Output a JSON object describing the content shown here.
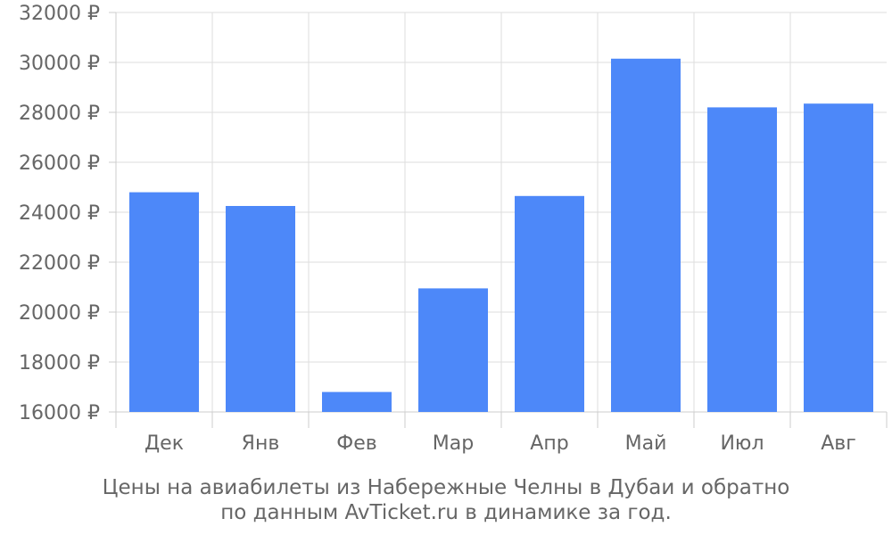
{
  "chart_data": {
    "type": "bar",
    "categories": [
      "Дек",
      "Янв",
      "Фев",
      "Мар",
      "Апр",
      "Май",
      "Июл",
      "Авг"
    ],
    "values": [
      24800,
      24250,
      16800,
      20950,
      24650,
      30150,
      28200,
      28350
    ],
    "ylim": [
      16000,
      32000
    ],
    "yticks": [
      16000,
      18000,
      20000,
      22000,
      24000,
      26000,
      28000,
      30000,
      32000
    ],
    "ytick_suffix": " ₽",
    "grid": true,
    "bar_color": "#4d88f9"
  },
  "caption": {
    "line1": "Цены на авиабилеты из Набережные Челны в Дубаи и обратно",
    "line2": "по данным AvTicket.ru в динамике за год."
  }
}
